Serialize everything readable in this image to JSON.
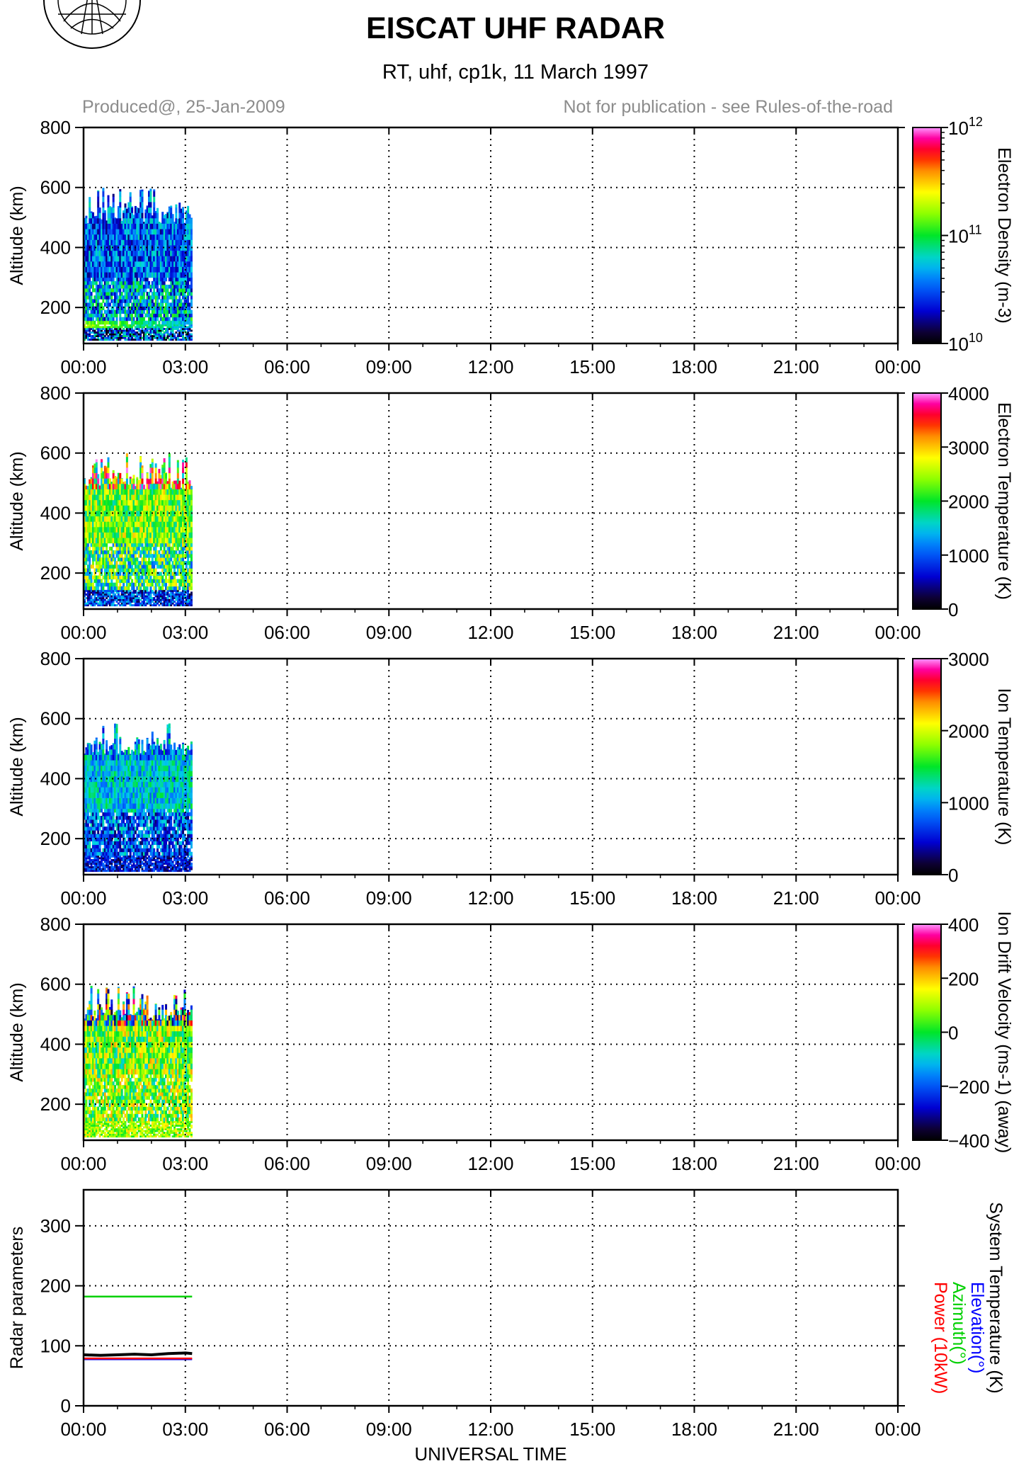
{
  "header": {
    "title": "EISCAT UHF RADAR",
    "subtitle": "RT, uhf, cp1k, 11 March 1997",
    "produced": "Produced@, 25-Jan-2009",
    "notice": "Not for publication - see Rules-of-the-road"
  },
  "colors": {
    "grid": "#000000",
    "annotation": "#8c8c8c",
    "system_temperature": "#000000",
    "elevation": "#0000ff",
    "azimuth": "#00d000",
    "power": "#ff0000"
  },
  "chart_data": [
    {
      "type": "heatmap",
      "panel": "electron-density",
      "ylabel": "Altitude (km)",
      "xticks": [
        "00:00",
        "03:00",
        "06:00",
        "09:00",
        "12:00",
        "15:00",
        "18:00",
        "21:00",
        "00:00"
      ],
      "xlim_hours": [
        0,
        24
      ],
      "ylim": [
        80,
        800
      ],
      "yticks": [
        200,
        400,
        600,
        800
      ],
      "data_extent": {
        "time_hours": [
          0,
          3.2
        ],
        "altitude_km": [
          90,
          600
        ]
      },
      "grid": "dotted",
      "colorbar": {
        "label": "Electron Density (m-3)",
        "scale": "log",
        "range": [
          10000000000.0,
          1000000000000.0
        ],
        "tick_labels": [
          "10^10",
          "10^11",
          "10^12"
        ]
      }
    },
    {
      "type": "heatmap",
      "panel": "electron-temperature",
      "ylabel": "Altitude (km)",
      "xticks": [
        "00:00",
        "03:00",
        "06:00",
        "09:00",
        "12:00",
        "15:00",
        "18:00",
        "21:00",
        "00:00"
      ],
      "xlim_hours": [
        0,
        24
      ],
      "ylim": [
        80,
        800
      ],
      "yticks": [
        200,
        400,
        600,
        800
      ],
      "data_extent": {
        "time_hours": [
          0,
          3.2
        ],
        "altitude_km": [
          90,
          600
        ]
      },
      "grid": "dotted",
      "colorbar": {
        "label": "Electron Temperature (K)",
        "scale": "linear",
        "range": [
          0,
          4000
        ],
        "tick_labels": [
          "0",
          "1000",
          "2000",
          "3000",
          "4000"
        ]
      }
    },
    {
      "type": "heatmap",
      "panel": "ion-temperature",
      "ylabel": "Altitude (km)",
      "xticks": [
        "00:00",
        "03:00",
        "06:00",
        "09:00",
        "12:00",
        "15:00",
        "18:00",
        "21:00",
        "00:00"
      ],
      "xlim_hours": [
        0,
        24
      ],
      "ylim": [
        80,
        800
      ],
      "yticks": [
        200,
        400,
        600,
        800
      ],
      "data_extent": {
        "time_hours": [
          0,
          3.2
        ],
        "altitude_km": [
          90,
          600
        ]
      },
      "grid": "dotted",
      "colorbar": {
        "label": "Ion Temperature (K)",
        "scale": "linear",
        "range": [
          0,
          3000
        ],
        "tick_labels": [
          "0",
          "1000",
          "2000",
          "3000"
        ]
      }
    },
    {
      "type": "heatmap",
      "panel": "ion-drift-velocity",
      "ylabel": "Altitude (km)",
      "xticks": [
        "00:00",
        "03:00",
        "06:00",
        "09:00",
        "12:00",
        "15:00",
        "18:00",
        "21:00",
        "00:00"
      ],
      "xlim_hours": [
        0,
        24
      ],
      "ylim": [
        80,
        800
      ],
      "yticks": [
        200,
        400,
        600,
        800
      ],
      "data_extent": {
        "time_hours": [
          0,
          3.2
        ],
        "altitude_km": [
          90,
          600
        ]
      },
      "grid": "dotted",
      "colorbar": {
        "label": "Ion Drift Velocity (ms-1) (away)",
        "scale": "linear",
        "range": [
          -400,
          400
        ],
        "tick_labels": [
          "-400",
          "-200",
          "0",
          "200",
          "400"
        ]
      }
    },
    {
      "type": "line",
      "panel": "radar-parameters",
      "ylabel": "Radar parameters",
      "xlabel": "UNIVERSAL TIME",
      "xticks": [
        "00:00",
        "03:00",
        "06:00",
        "09:00",
        "12:00",
        "15:00",
        "18:00",
        "21:00",
        "00:00"
      ],
      "xlim_hours": [
        0,
        24
      ],
      "ylim": [
        0,
        360
      ],
      "yticks": [
        0,
        100,
        200,
        300
      ],
      "grid": "dotted",
      "series": [
        {
          "name": "System Temperature (K)",
          "color": "#000000",
          "x": [
            0,
            0.5,
            1.0,
            1.5,
            2.0,
            2.5,
            3.0,
            3.2
          ],
          "y": [
            85,
            84,
            85,
            86,
            85,
            87,
            88,
            87
          ]
        },
        {
          "name": "Elevation(°)",
          "color": "#0000ff",
          "x": [
            0,
            3.2
          ],
          "y": [
            77.5,
            77.5
          ]
        },
        {
          "name": "Azimuth(°)",
          "color": "#00d000",
          "x": [
            0,
            3.2
          ],
          "y": [
            182,
            182
          ]
        },
        {
          "name": "Power (10kW)",
          "color": "#ff0000",
          "x": [
            0,
            3.2
          ],
          "y": [
            79,
            79
          ]
        }
      ]
    }
  ]
}
